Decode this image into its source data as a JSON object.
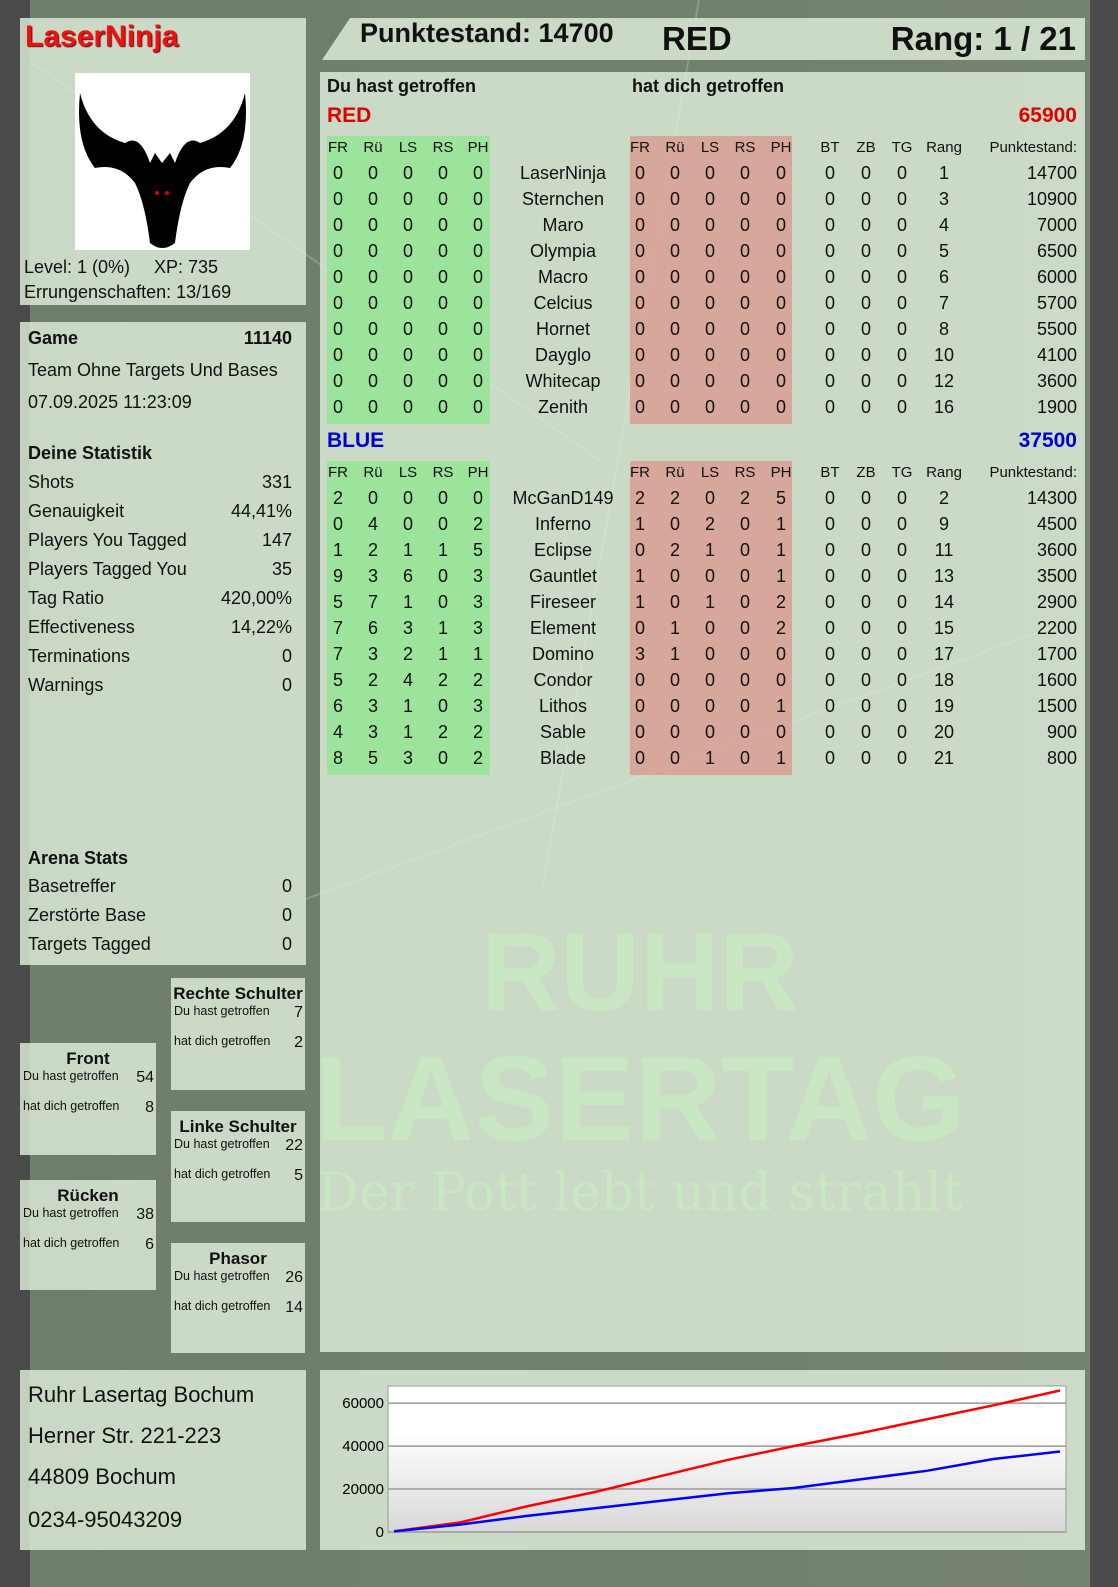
{
  "player": {
    "name": "LaserNinja",
    "level": "Level: 1 (0%)",
    "xp": "XP: 735",
    "achievements": "Errungenschaften: 13/169",
    "avatar_icon": "bat-icon"
  },
  "header": {
    "score": "Punktestand: 14700",
    "team": "RED",
    "rank": "Rang: 1 / 21"
  },
  "game": {
    "label": "Game",
    "id": "11140",
    "mode": "Team Ohne Targets Und Bases",
    "datetime": "07.09.2025 11:23:09"
  },
  "stats": {
    "title": "Deine Statistik",
    "items": [
      {
        "label": "Shots",
        "value": "331"
      },
      {
        "label": "Genauigkeit",
        "value": "44,41%"
      },
      {
        "label": "Players You Tagged",
        "value": "147"
      },
      {
        "label": "Players Tagged You",
        "value": "35"
      },
      {
        "label": "Tag Ratio",
        "value": "420,00%"
      },
      {
        "label": "Effectiveness",
        "value": "14,22%"
      },
      {
        "label": "Terminations",
        "value": "0"
      },
      {
        "label": "Warnings",
        "value": "0"
      }
    ]
  },
  "arena": {
    "title": "Arena Stats",
    "items": [
      {
        "label": "Basetreffer",
        "value": "0"
      },
      {
        "label": "Zerstörte Base",
        "value": "0"
      },
      {
        "label": "Targets Tagged",
        "value": "0"
      }
    ]
  },
  "zones": {
    "hit_label": "Du hast getroffen",
    "got_label": "hat dich getroffen",
    "items": [
      {
        "name": "Rechte Schulter",
        "hit": "7",
        "got": "2"
      },
      {
        "name": "Front",
        "hit": "54",
        "got": "8"
      },
      {
        "name": "Linke Schulter",
        "hit": "22",
        "got": "5"
      },
      {
        "name": "Rücken",
        "hit": "38",
        "got": "6"
      },
      {
        "name": "Phasor",
        "hit": "26",
        "got": "14"
      }
    ]
  },
  "address": [
    "Ruhr Lasertag Bochum",
    "Herner Str. 221-223",
    "44809 Bochum",
    "0234-95043209"
  ],
  "table": {
    "you_hit": "Du hast getroffen",
    "hit_you": "hat dich getroffen",
    "columns": [
      "FR",
      "Rü",
      "LS",
      "RS",
      "PH",
      "FR",
      "Rü",
      "LS",
      "RS",
      "PH",
      "BT",
      "ZB",
      "TG",
      "Rang",
      "Punktestand:"
    ],
    "teams": [
      {
        "name": "RED",
        "score": "65900",
        "color": "#e00000",
        "rows": [
          [
            "0",
            "0",
            "0",
            "0",
            "0",
            "LaserNinja",
            "0",
            "0",
            "0",
            "0",
            "0",
            "0",
            "0",
            "0",
            "1",
            "14700"
          ],
          [
            "0",
            "0",
            "0",
            "0",
            "0",
            "Sternchen",
            "0",
            "0",
            "0",
            "0",
            "0",
            "0",
            "0",
            "0",
            "3",
            "10900"
          ],
          [
            "0",
            "0",
            "0",
            "0",
            "0",
            "Maro",
            "0",
            "0",
            "0",
            "0",
            "0",
            "0",
            "0",
            "0",
            "4",
            "7000"
          ],
          [
            "0",
            "0",
            "0",
            "0",
            "0",
            "Olympia",
            "0",
            "0",
            "0",
            "0",
            "0",
            "0",
            "0",
            "0",
            "5",
            "6500"
          ],
          [
            "0",
            "0",
            "0",
            "0",
            "0",
            "Macro",
            "0",
            "0",
            "0",
            "0",
            "0",
            "0",
            "0",
            "0",
            "6",
            "6000"
          ],
          [
            "0",
            "0",
            "0",
            "0",
            "0",
            "Celcius",
            "0",
            "0",
            "0",
            "0",
            "0",
            "0",
            "0",
            "0",
            "7",
            "5700"
          ],
          [
            "0",
            "0",
            "0",
            "0",
            "0",
            "Hornet",
            "0",
            "0",
            "0",
            "0",
            "0",
            "0",
            "0",
            "0",
            "8",
            "5500"
          ],
          [
            "0",
            "0",
            "0",
            "0",
            "0",
            "Dayglo",
            "0",
            "0",
            "0",
            "0",
            "0",
            "0",
            "0",
            "0",
            "10",
            "4100"
          ],
          [
            "0",
            "0",
            "0",
            "0",
            "0",
            "Whitecap",
            "0",
            "0",
            "0",
            "0",
            "0",
            "0",
            "0",
            "0",
            "12",
            "3600"
          ],
          [
            "0",
            "0",
            "0",
            "0",
            "0",
            "Zenith",
            "0",
            "0",
            "0",
            "0",
            "0",
            "0",
            "0",
            "0",
            "16",
            "1900"
          ]
        ]
      },
      {
        "name": "BLUE",
        "score": "37500",
        "color": "#0000d0",
        "rows": [
          [
            "2",
            "0",
            "0",
            "0",
            "0",
            "McGanD149",
            "2",
            "2",
            "0",
            "2",
            "5",
            "0",
            "0",
            "0",
            "2",
            "14300"
          ],
          [
            "0",
            "4",
            "0",
            "0",
            "2",
            "Inferno",
            "1",
            "0",
            "2",
            "0",
            "1",
            "0",
            "0",
            "0",
            "9",
            "4500"
          ],
          [
            "1",
            "2",
            "1",
            "1",
            "5",
            "Eclipse",
            "0",
            "2",
            "1",
            "0",
            "1",
            "0",
            "0",
            "0",
            "11",
            "3600"
          ],
          [
            "9",
            "3",
            "6",
            "0",
            "3",
            "Gauntlet",
            "1",
            "0",
            "0",
            "0",
            "1",
            "0",
            "0",
            "0",
            "13",
            "3500"
          ],
          [
            "5",
            "7",
            "1",
            "0",
            "3",
            "Fireseer",
            "1",
            "0",
            "1",
            "0",
            "2",
            "0",
            "0",
            "0",
            "14",
            "2900"
          ],
          [
            "7",
            "6",
            "3",
            "1",
            "3",
            "Element",
            "0",
            "1",
            "0",
            "0",
            "2",
            "0",
            "0",
            "0",
            "15",
            "2200"
          ],
          [
            "7",
            "3",
            "2",
            "1",
            "1",
            "Domino",
            "3",
            "1",
            "0",
            "0",
            "0",
            "0",
            "0",
            "0",
            "17",
            "1700"
          ],
          [
            "5",
            "2",
            "4",
            "2",
            "2",
            "Condor",
            "0",
            "0",
            "0",
            "0",
            "0",
            "0",
            "0",
            "0",
            "18",
            "1600"
          ],
          [
            "6",
            "3",
            "1",
            "0",
            "3",
            "Lithos",
            "0",
            "0",
            "0",
            "0",
            "1",
            "0",
            "0",
            "0",
            "19",
            "1500"
          ],
          [
            "4",
            "3",
            "1",
            "2",
            "2",
            "Sable",
            "0",
            "0",
            "0",
            "0",
            "0",
            "0",
            "0",
            "0",
            "20",
            "900"
          ],
          [
            "8",
            "5",
            "3",
            "0",
            "2",
            "Blade",
            "0",
            "0",
            "1",
            "0",
            "1",
            "0",
            "0",
            "0",
            "21",
            "800"
          ]
        ]
      }
    ]
  },
  "logo": {
    "line1": "RUHR",
    "line2": "LASERTAG",
    "tagline": "Der Pott lebt und strahlt"
  },
  "chart_data": {
    "type": "line",
    "ylim": [
      0,
      68000
    ],
    "yticks": [
      "0",
      "20000",
      "40000",
      "60000"
    ],
    "grid": true,
    "x": [
      0,
      1,
      2,
      3,
      4,
      5,
      6,
      7,
      8,
      9,
      10
    ],
    "series": [
      {
        "color": "#ff0000",
        "values": [
          300,
          4500,
          12000,
          18500,
          26000,
          33500,
          40000,
          46000,
          52500,
          59000,
          65900
        ]
      },
      {
        "color": "#0000ff",
        "values": [
          300,
          3500,
          7500,
          11000,
          14500,
          18000,
          20500,
          24500,
          28500,
          34000,
          37500
        ]
      }
    ]
  }
}
